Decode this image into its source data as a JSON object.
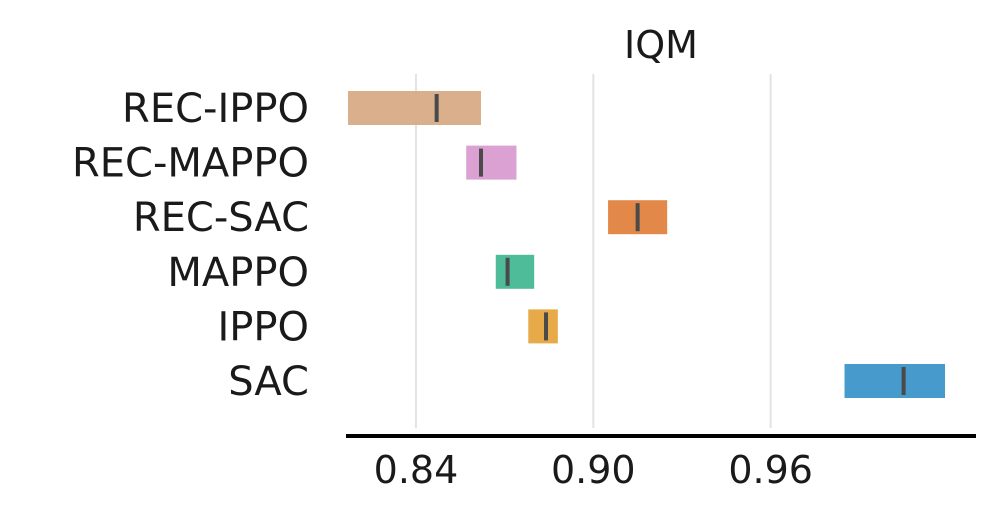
{
  "chart_data": {
    "type": "interval",
    "title": "IQM",
    "categories": [
      "REC-IPPO",
      "REC-MAPPO",
      "REC-SAC",
      "MAPPO",
      "IPPO",
      "SAC"
    ],
    "series": [
      {
        "name": "REC-IPPO",
        "low": 0.817,
        "high": 0.862,
        "point": 0.847,
        "color": "#d8ab86"
      },
      {
        "name": "REC-MAPPO",
        "low": 0.857,
        "high": 0.874,
        "point": 0.862,
        "color": "#d99cd1"
      },
      {
        "name": "REC-SAC",
        "low": 0.905,
        "high": 0.925,
        "point": 0.915,
        "color": "#e0823f"
      },
      {
        "name": "MAPPO",
        "low": 0.867,
        "high": 0.88,
        "point": 0.871,
        "color": "#45b794"
      },
      {
        "name": "IPPO",
        "low": 0.878,
        "high": 0.888,
        "point": 0.884,
        "color": "#e5a73e"
      },
      {
        "name": "SAC",
        "low": 0.985,
        "high": 1.019,
        "point": 1.005,
        "color": "#3d95c9"
      }
    ],
    "xticks": [
      0.84,
      0.9,
      0.96
    ],
    "xtick_labels": [
      "0.84",
      "0.90",
      "0.96"
    ],
    "xlim": [
      0.817,
      1.019
    ],
    "grid": "x",
    "xlabel": "",
    "ylabel": ""
  }
}
